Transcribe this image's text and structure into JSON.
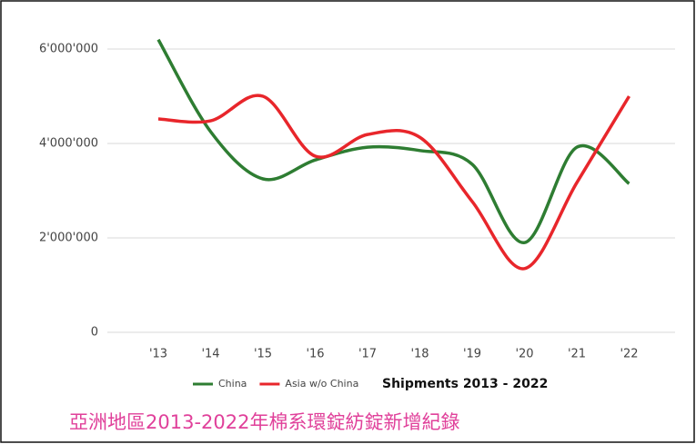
{
  "chart_data": {
    "type": "line",
    "categories": [
      "'13",
      "'14",
      "'15",
      "'16",
      "'17",
      "'18",
      "'19",
      "'20",
      "'21",
      "'22"
    ],
    "series": [
      {
        "name": "China",
        "color": "#2e7d32",
        "values": [
          6200000,
          4250000,
          3250000,
          3650000,
          3920000,
          3850000,
          3560000,
          1900000,
          3920000,
          3150000
        ]
      },
      {
        "name": "Asia w/o China",
        "color": "#e8262b",
        "values": [
          4520000,
          4480000,
          5000000,
          3730000,
          4190000,
          4130000,
          2770000,
          1350000,
          3170000,
          5000000
        ]
      }
    ],
    "legend_title": "Shipments 2013 - 2022",
    "caption": "亞洲地區2013-2022年棉系環錠紡錠新增紀錄",
    "ylim": [
      0,
      6500000
    ],
    "yticks": [
      0,
      {
        "value": 2000000,
        "label": "2'000'000"
      },
      {
        "value": 4000000,
        "label": "4'000'000"
      },
      {
        "value": 6000000,
        "label": "6'000'000"
      }
    ],
    "grid": true
  }
}
